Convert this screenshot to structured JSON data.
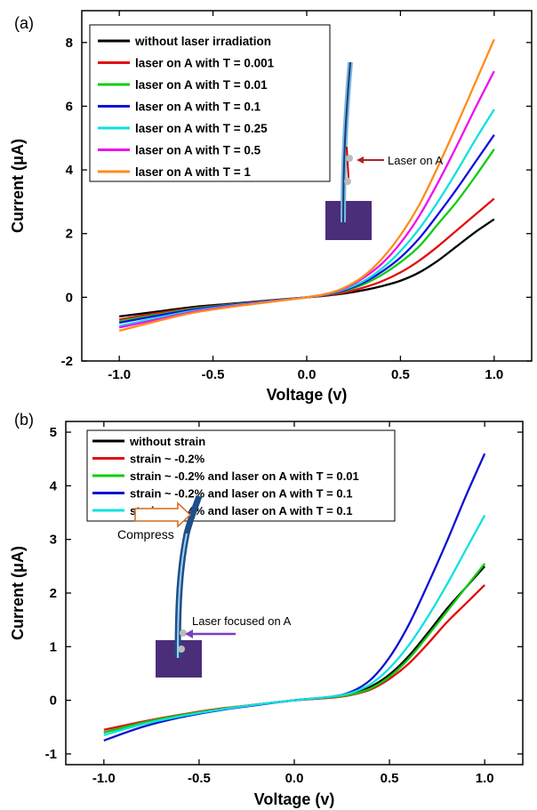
{
  "chart_data": [
    {
      "panel_label": "(a)",
      "type": "line",
      "xlabel": "Voltage (v)",
      "ylabel": "Current (μA)",
      "xlim": [
        -1.2,
        1.2
      ],
      "ylim": [
        -2,
        9
      ],
      "xticks": [
        "-1.0",
        "-0.5",
        "0.0",
        "0.5",
        "1.0"
      ],
      "yticks": [
        "-2",
        "0",
        "2",
        "4",
        "6",
        "8"
      ],
      "grid": false,
      "legend_position": "top-left",
      "x": [
        -1.0,
        -0.8,
        -0.6,
        -0.4,
        -0.2,
        0.0,
        0.1,
        0.2,
        0.3,
        0.4,
        0.5,
        0.6,
        0.7,
        0.8,
        0.9,
        1.0
      ],
      "series": [
        {
          "name": "without laser irradiation",
          "color": "#000000",
          "values": [
            -0.6,
            -0.45,
            -0.3,
            -0.2,
            -0.1,
            0.0,
            0.05,
            0.12,
            0.22,
            0.35,
            0.52,
            0.78,
            1.15,
            1.6,
            2.05,
            2.45
          ]
        },
        {
          "name": "laser on A with T = 0.001",
          "color": "#e01010",
          "values": [
            -0.7,
            -0.5,
            -0.34,
            -0.22,
            -0.11,
            0.0,
            0.06,
            0.15,
            0.3,
            0.5,
            0.78,
            1.15,
            1.6,
            2.1,
            2.6,
            3.1
          ]
        },
        {
          "name": "laser on A with T = 0.01",
          "color": "#10cc10",
          "values": [
            -0.75,
            -0.55,
            -0.36,
            -0.23,
            -0.12,
            0.0,
            0.08,
            0.2,
            0.4,
            0.7,
            1.1,
            1.6,
            2.3,
            3.0,
            3.8,
            4.65
          ]
        },
        {
          "name": "laser on A with T = 0.1",
          "color": "#1010e0",
          "values": [
            -0.8,
            -0.58,
            -0.38,
            -0.24,
            -0.12,
            0.0,
            0.08,
            0.22,
            0.45,
            0.8,
            1.25,
            1.85,
            2.6,
            3.4,
            4.25,
            5.1
          ]
        },
        {
          "name": "laser on A with T = 0.25",
          "color": "#10e0e0",
          "values": [
            -0.9,
            -0.65,
            -0.42,
            -0.26,
            -0.13,
            0.0,
            0.09,
            0.25,
            0.5,
            0.9,
            1.45,
            2.15,
            3.0,
            3.95,
            4.95,
            5.9
          ]
        },
        {
          "name": "laser on A with T = 0.5",
          "color": "#ee10ee",
          "values": [
            -0.95,
            -0.7,
            -0.45,
            -0.28,
            -0.14,
            0.0,
            0.1,
            0.28,
            0.6,
            1.05,
            1.7,
            2.55,
            3.6,
            4.75,
            5.95,
            7.1
          ]
        },
        {
          "name": "laser on A with T = 1",
          "color": "#ff8c1a",
          "values": [
            -1.05,
            -0.75,
            -0.48,
            -0.3,
            -0.15,
            0.0,
            0.1,
            0.3,
            0.65,
            1.2,
            1.95,
            2.9,
            4.1,
            5.4,
            6.75,
            8.1
          ]
        }
      ],
      "inset": {
        "annotation": "Laser on A",
        "colors": {
          "base": "#4a2e7a",
          "wire": "#7ab8e8",
          "arrow": "#b22222"
        }
      }
    },
    {
      "panel_label": "(b)",
      "type": "line",
      "xlabel": "Voltage (v)",
      "ylabel": "Current (μA)",
      "xlim": [
        -1.2,
        1.2
      ],
      "ylim": [
        -1.2,
        5.2
      ],
      "xticks": [
        "-1.0",
        "-0.5",
        "0.0",
        "0.5",
        "1.0"
      ],
      "yticks": [
        "-1",
        "0",
        "1",
        "2",
        "3",
        "4",
        "5"
      ],
      "grid": false,
      "legend_position": "top-left",
      "x": [
        -1.0,
        -0.8,
        -0.6,
        -0.4,
        -0.2,
        0.0,
        0.2,
        0.3,
        0.4,
        0.5,
        0.6,
        0.7,
        0.8,
        0.9,
        1.0
      ],
      "series": [
        {
          "name": "without strain",
          "color": "#000000",
          "values": [
            -0.6,
            -0.42,
            -0.28,
            -0.17,
            -0.08,
            0.0,
            0.06,
            0.12,
            0.25,
            0.48,
            0.82,
            1.25,
            1.7,
            2.1,
            2.5
          ]
        },
        {
          "name": "strain ~ -0.2%",
          "color": "#e01010",
          "values": [
            -0.55,
            -0.4,
            -0.27,
            -0.16,
            -0.08,
            0.0,
            0.05,
            0.1,
            0.2,
            0.4,
            0.68,
            1.05,
            1.45,
            1.8,
            2.15
          ]
        },
        {
          "name": "strain ~ -0.2% and laser on A with T = 0.01",
          "color": "#10cc10",
          "values": [
            -0.6,
            -0.42,
            -0.28,
            -0.17,
            -0.08,
            0.0,
            0.06,
            0.11,
            0.22,
            0.44,
            0.77,
            1.2,
            1.65,
            2.1,
            2.55
          ]
        },
        {
          "name": "strain ~ -0.2% and laser on A with T = 0.1",
          "color": "#1010d0",
          "values": [
            -0.75,
            -0.5,
            -0.32,
            -0.19,
            -0.09,
            0.0,
            0.07,
            0.16,
            0.38,
            0.8,
            1.4,
            2.15,
            2.95,
            3.8,
            4.6
          ]
        },
        {
          "name": "strain ~ -0.4% and laser on A with T = 0.1",
          "color": "#10e0e0",
          "values": [
            -0.65,
            -0.45,
            -0.3,
            -0.18,
            -0.08,
            0.0,
            0.07,
            0.14,
            0.3,
            0.6,
            1.02,
            1.55,
            2.15,
            2.8,
            3.45
          ]
        }
      ],
      "inset": {
        "label_compress": "Compress",
        "label_laser": "Laser focused on A",
        "colors": {
          "base": "#4a2e7a",
          "wire": "#1f4f8a",
          "arrow_compress": "#d2691e",
          "arrow_laser": "#7b3fbf"
        }
      }
    }
  ]
}
